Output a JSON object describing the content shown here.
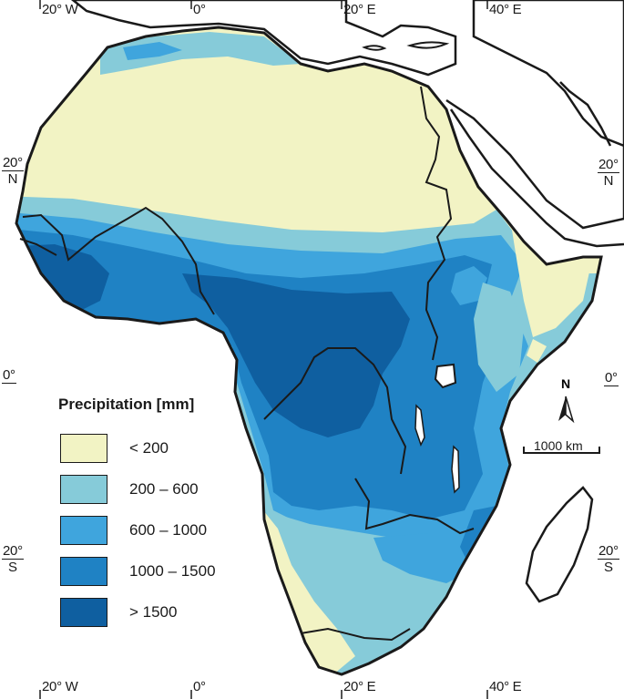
{
  "map": {
    "graticule": {
      "top": [
        "20° W",
        "0°",
        "20° E",
        "40° E"
      ],
      "bottom": [
        "20° W",
        "0°",
        "20° E",
        "40° E"
      ],
      "left": [
        {
          "value": "20°",
          "hemi": "N"
        },
        {
          "value": "0°",
          "hemi": ""
        },
        {
          "value": "20°",
          "hemi": "S"
        }
      ],
      "right": [
        {
          "value": "20°",
          "hemi": "N"
        },
        {
          "value": "0°",
          "hemi": ""
        },
        {
          "value": "20°",
          "hemi": "S"
        }
      ]
    },
    "legend": {
      "title": "Precipitation [mm]",
      "items": [
        {
          "label": "< 200",
          "color": "#f2f3c4"
        },
        {
          "label": "200 – 600",
          "color": "#86cbd9"
        },
        {
          "label": "600 – 1000",
          "color": "#3fa5dd"
        },
        {
          "label": "1000 – 1500",
          "color": "#1f82c4"
        },
        {
          "label": "> 1500",
          "color": "#0f5fa0"
        }
      ]
    },
    "north_arrow": "N",
    "scale_bar": "1000 km",
    "colors": {
      "outline": "#1a1a1a",
      "background": "#ffffff"
    }
  }
}
